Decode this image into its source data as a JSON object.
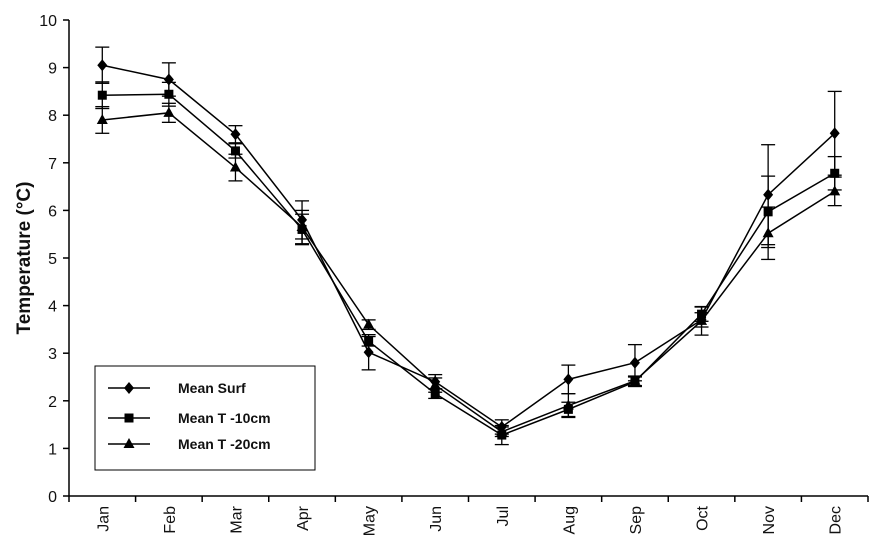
{
  "chart_data": {
    "type": "line",
    "title": "",
    "xlabel": "",
    "ylabel": "Temperature (°C)",
    "ylim": [
      0,
      10
    ],
    "yticks": [
      0,
      1,
      2,
      3,
      4,
      5,
      6,
      7,
      8,
      9,
      10
    ],
    "categories": [
      "Jan",
      "Feb",
      "Mar",
      "Apr",
      "May",
      "Jun",
      "Jul",
      "Aug",
      "Sep",
      "Oct",
      "Nov",
      "Dec"
    ],
    "grid": false,
    "legend_position": "bottom-left",
    "series": [
      {
        "name": "Mean Surf",
        "marker": "diamond",
        "values": [
          9.05,
          8.75,
          7.6,
          5.8,
          3.02,
          2.4,
          1.45,
          2.45,
          2.8,
          3.7,
          6.33,
          7.62
        ],
        "errors": [
          0.38,
          0.35,
          0.18,
          0.4,
          0.37,
          0.15,
          0.15,
          0.3,
          0.38,
          0.15,
          1.05,
          0.88
        ]
      },
      {
        "name": "Mean T -10cm",
        "marker": "square",
        "values": [
          8.42,
          8.44,
          7.25,
          5.6,
          3.25,
          2.15,
          1.28,
          1.82,
          2.4,
          3.82,
          5.97,
          6.78
        ],
        "errors": [
          0.28,
          0.25,
          0.15,
          0.32,
          0.1,
          0.1,
          0.2,
          0.15,
          0.1,
          0.15,
          0.75,
          0.35
        ]
      },
      {
        "name": "Mean T -20cm",
        "marker": "triangle",
        "values": [
          7.9,
          8.05,
          6.9,
          5.65,
          3.6,
          2.33,
          1.35,
          1.9,
          2.42,
          3.68,
          5.52,
          6.4
        ],
        "errors": [
          0.28,
          0.2,
          0.28,
          0.35,
          0.1,
          0.15,
          0.1,
          0.25,
          0.1,
          0.3,
          0.55,
          0.3
        ]
      }
    ]
  }
}
